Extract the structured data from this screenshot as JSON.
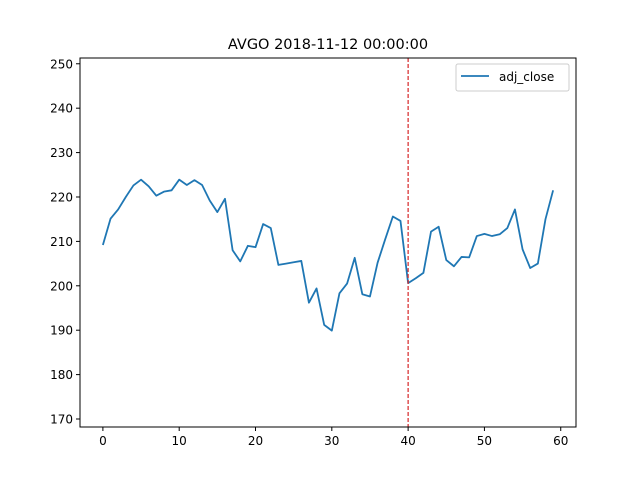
{
  "chart_data": {
    "type": "line",
    "title": "AVGO 2018-11-12 00:00:00",
    "xlabel": "",
    "ylabel": "",
    "xlim": [
      -3,
      62
    ],
    "ylim": [
      168.2,
      251.3
    ],
    "xticks": [
      0,
      10,
      20,
      30,
      40,
      50,
      60
    ],
    "yticks": [
      170,
      180,
      190,
      200,
      210,
      220,
      230,
      240,
      250
    ],
    "legend": {
      "position": "top-right"
    },
    "grid": false,
    "vline": {
      "x": 40,
      "color": "#d62728",
      "style": "dashed"
    },
    "series": [
      {
        "name": "adj_close",
        "color": "#1f77b4",
        "x": [
          0,
          1,
          2,
          3,
          4,
          5,
          6,
          7,
          8,
          9,
          10,
          11,
          12,
          13,
          14,
          15,
          16,
          17,
          18,
          19,
          20,
          21,
          22,
          23,
          24,
          25,
          26,
          27,
          28,
          29,
          30,
          31,
          32,
          33,
          34,
          35,
          36,
          37,
          38,
          39,
          40,
          41,
          42,
          43,
          44,
          45,
          46,
          47,
          48,
          49,
          50,
          51,
          52,
          53,
          54,
          55,
          56,
          57,
          58,
          59
        ],
        "values": [
          209.2,
          215.1,
          217.2,
          220.0,
          222.6,
          223.9,
          222.4,
          220.3,
          221.2,
          221.5,
          223.9,
          222.7,
          223.8,
          222.7,
          219.2,
          216.6,
          219.6,
          208.0,
          205.5,
          209.0,
          208.7,
          213.9,
          213.0,
          204.7,
          205.0,
          205.3,
          205.6,
          196.2,
          199.4,
          191.2,
          189.9,
          198.3,
          200.5,
          206.3,
          198.1,
          197.6,
          205.2,
          210.5,
          215.6,
          214.6,
          200.6,
          201.7,
          202.9,
          212.2,
          213.3,
          205.8,
          204.4,
          206.5,
          206.4,
          211.2,
          211.7,
          211.2,
          211.6,
          213.0,
          217.2,
          208.2,
          204.0,
          205.0,
          215.0,
          221.5
        ]
      }
    ]
  }
}
